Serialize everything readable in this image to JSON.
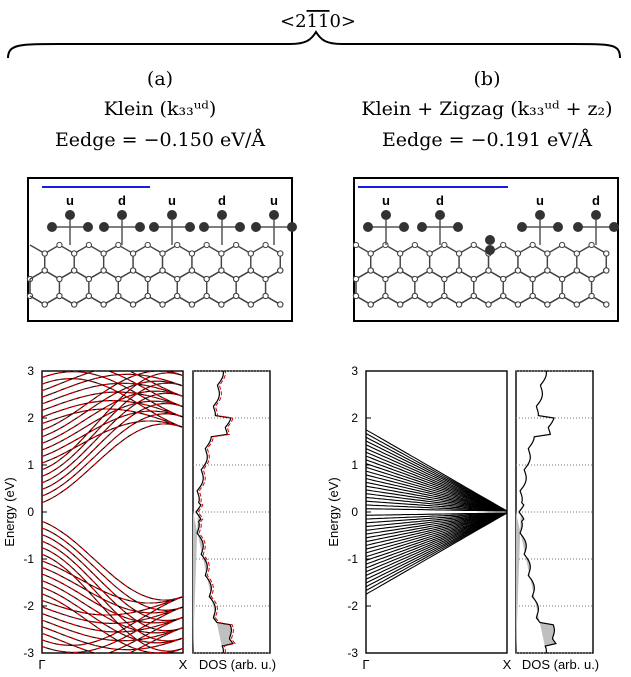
{
  "header": {
    "direction": "<2̄̅̄̅̄̅̄>"
  },
  "panels": [
    {
      "id": "a",
      "label": "(a)",
      "title": "Klein (k₃₃ᵘᵈ)",
      "energy": "Eedge = −0.150 eV/Å",
      "atom_labels": [
        "u",
        "d",
        "u",
        "d",
        "u"
      ]
    },
    {
      "id": "b",
      "label": "(b)",
      "title": "Klein + Zigzag (k₃₃ᵘᵈ + z₂)",
      "energy": "Eedge = −0.191 eV/Å",
      "atom_labels": [
        "u",
        "d",
        "u",
        "d"
      ]
    }
  ],
  "plot_text": {
    "ylabel": "Energy (eV)",
    "x_gamma": "Γ",
    "x_X": "X",
    "dos_label": "DOS (arb. u.)",
    "yticks": [
      "3",
      "2",
      "1",
      "0",
      "-1",
      "-2",
      "-3"
    ]
  },
  "chart_data": [
    {
      "type": "line",
      "panel": "a-bands",
      "xlabel": "",
      "ylabel": "Energy (eV)",
      "x": [
        "Γ",
        "X"
      ],
      "ylim": [
        -3,
        3
      ],
      "grid": "horizontal dotted at integer energies (DOS side)",
      "series_colors": {
        "solid": "#000000",
        "dashed": "#d40000"
      },
      "notes": "Dense band structure; black solid and red dashed bands overlapping; gap near 0 eV with bands approaching 0 near X."
    },
    {
      "type": "line",
      "panel": "a-dos",
      "xlabel": "DOS (arb. u.)",
      "ylim": [
        -3,
        3
      ],
      "colors": {
        "line": "#000000",
        "fit": "#d40000",
        "fill": "#bfbfbf"
      }
    },
    {
      "type": "line",
      "panel": "b-bands",
      "ylabel": "Energy (eV)",
      "x": [
        "Γ",
        "X"
      ],
      "ylim": [
        -3,
        3
      ],
      "colors": {
        "line": "#000000"
      }
    },
    {
      "type": "line",
      "panel": "b-dos",
      "xlabel": "DOS (arb. u.)",
      "ylim": [
        -3,
        3
      ],
      "colors": {
        "line": "#000000",
        "fill": "#bfbfbf"
      }
    }
  ]
}
